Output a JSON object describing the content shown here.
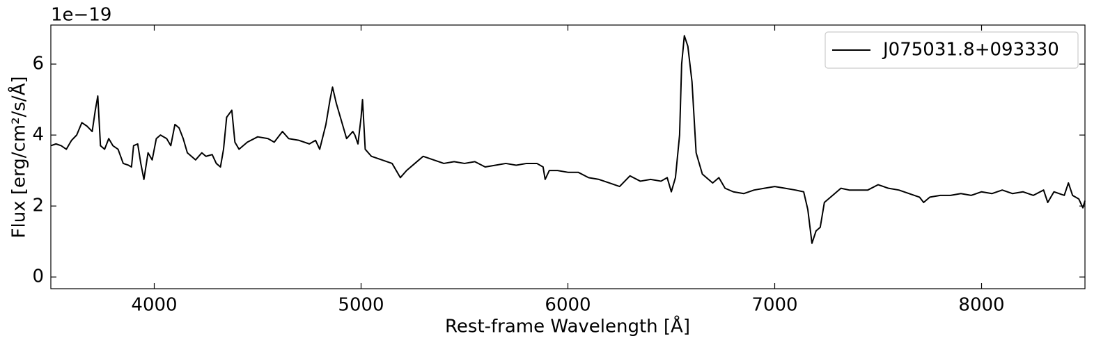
{
  "chart_data": {
    "type": "line",
    "y_offset_label": "1e−19",
    "xlabel": "Rest-frame Wavelength [Å]",
    "ylabel": "Flux [erg/cm²/s/Å]",
    "xlim": [
      3500,
      8500
    ],
    "xticks": [
      4000,
      5000,
      6000,
      7000,
      8000
    ],
    "ylim": [
      -0.33,
      7.1
    ],
    "yticks": [
      0,
      2,
      4,
      6
    ],
    "legend": "upper right",
    "x": [
      3500,
      3525,
      3550,
      3575,
      3600,
      3625,
      3650,
      3675,
      3700,
      3715,
      3727,
      3740,
      3760,
      3780,
      3800,
      3825,
      3850,
      3875,
      3890,
      3900,
      3920,
      3935,
      3950,
      3970,
      3990,
      4010,
      4030,
      4060,
      4080,
      4100,
      4120,
      4140,
      4160,
      4180,
      4200,
      4230,
      4250,
      4280,
      4300,
      4320,
      4335,
      4350,
      4375,
      4390,
      4410,
      4450,
      4500,
      4550,
      4580,
      4620,
      4650,
      4700,
      4750,
      4780,
      4800,
      4830,
      4850,
      4862,
      4880,
      4900,
      4930,
      4960,
      4970,
      4985,
      5000,
      5007,
      5020,
      5050,
      5100,
      5150,
      5190,
      5220,
      5260,
      5300,
      5350,
      5400,
      5450,
      5500,
      5550,
      5600,
      5650,
      5700,
      5750,
      5800,
      5850,
      5880,
      5890,
      5910,
      5950,
      6000,
      6050,
      6100,
      6150,
      6200,
      6250,
      6300,
      6350,
      6400,
      6450,
      6480,
      6500,
      6520,
      6540,
      6550,
      6563,
      6580,
      6600,
      6620,
      6650,
      6700,
      6730,
      6760,
      6800,
      6850,
      6900,
      6950,
      7000,
      7050,
      7100,
      7140,
      7160,
      7180,
      7200,
      7220,
      7240,
      7280,
      7320,
      7360,
      7400,
      7450,
      7500,
      7550,
      7600,
      7650,
      7700,
      7720,
      7750,
      7800,
      7850,
      7900,
      7950,
      8000,
      8050,
      8100,
      8150,
      8200,
      8250,
      8300,
      8320,
      8350,
      8400,
      8420,
      8440,
      8470,
      8490,
      8500
    ],
    "series": [
      {
        "name": "J075031.8+093330",
        "color": "#000000",
        "values": [
          3.7,
          3.75,
          3.7,
          3.6,
          3.85,
          4.0,
          4.35,
          4.25,
          4.1,
          4.7,
          5.1,
          3.7,
          3.6,
          3.9,
          3.7,
          3.6,
          3.2,
          3.15,
          3.1,
          3.7,
          3.75,
          3.2,
          2.75,
          3.5,
          3.3,
          3.9,
          4.0,
          3.9,
          3.7,
          4.3,
          4.2,
          3.9,
          3.5,
          3.4,
          3.3,
          3.5,
          3.4,
          3.45,
          3.2,
          3.1,
          3.6,
          4.5,
          4.7,
          3.8,
          3.6,
          3.8,
          3.95,
          3.9,
          3.8,
          4.1,
          3.9,
          3.85,
          3.75,
          3.85,
          3.6,
          4.3,
          5.0,
          5.35,
          4.9,
          4.5,
          3.9,
          4.1,
          4.0,
          3.75,
          4.5,
          5.0,
          3.6,
          3.4,
          3.3,
          3.2,
          2.8,
          3.0,
          3.2,
          3.4,
          3.3,
          3.2,
          3.25,
          3.2,
          3.25,
          3.1,
          3.15,
          3.2,
          3.15,
          3.2,
          3.2,
          3.1,
          2.75,
          3.0,
          3.0,
          2.95,
          2.95,
          2.8,
          2.75,
          2.65,
          2.55,
          2.85,
          2.7,
          2.75,
          2.7,
          2.8,
          2.4,
          2.8,
          4.0,
          6.0,
          6.8,
          6.5,
          5.5,
          3.5,
          2.9,
          2.65,
          2.8,
          2.5,
          2.4,
          2.35,
          2.45,
          2.5,
          2.55,
          2.5,
          2.45,
          2.4,
          1.9,
          0.95,
          1.3,
          1.4,
          2.1,
          2.3,
          2.5,
          2.45,
          2.45,
          2.45,
          2.6,
          2.5,
          2.45,
          2.35,
          2.25,
          2.1,
          2.25,
          2.3,
          2.3,
          2.35,
          2.3,
          2.4,
          2.35,
          2.45,
          2.35,
          2.4,
          2.3,
          2.45,
          2.1,
          2.4,
          2.3,
          2.65,
          2.3,
          2.2,
          1.95,
          2.15
        ]
      }
    ]
  }
}
